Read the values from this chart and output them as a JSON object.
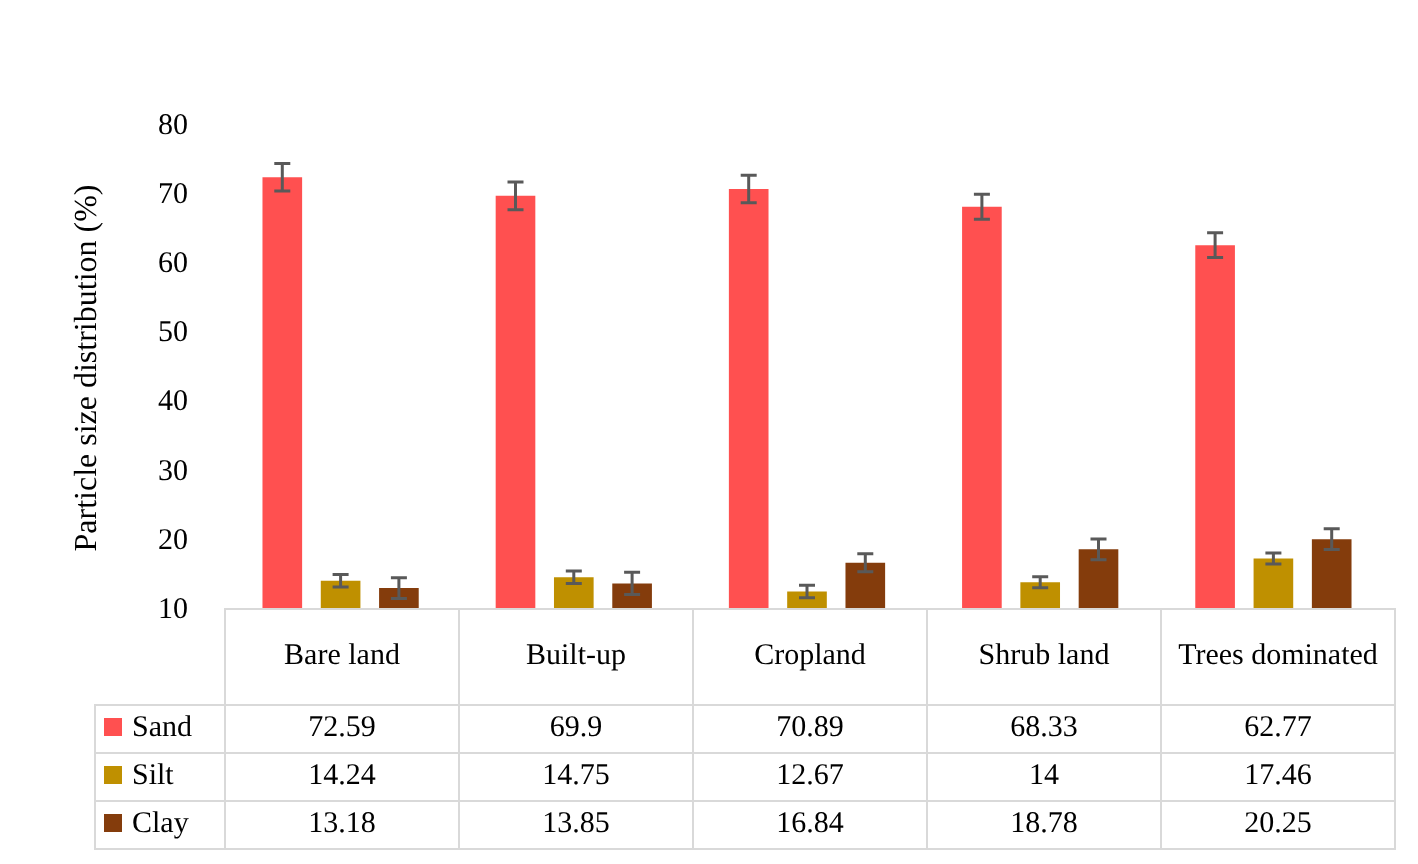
{
  "chart_data": {
    "type": "bar",
    "ylabel": "Particle size distribution (%)",
    "categories": [
      "Bare land",
      "Built-up",
      "Cropland",
      "Shrub land",
      "Trees dominated"
    ],
    "series": [
      {
        "name": "Sand",
        "color": "#ff5050",
        "values": [
          72.59,
          69.9,
          70.89,
          68.33,
          62.77
        ],
        "errors": [
          2,
          2,
          2,
          1.8,
          1.8
        ]
      },
      {
        "name": "Silt",
        "color": "#bf9000",
        "values": [
          14.24,
          14.75,
          12.67,
          14,
          17.46
        ],
        "errors": [
          0.9,
          0.9,
          0.9,
          0.8,
          0.8
        ]
      },
      {
        "name": "Clay",
        "color": "#843c0c",
        "values": [
          13.18,
          13.85,
          16.84,
          18.78,
          20.25
        ],
        "errors": [
          1.5,
          1.6,
          1.3,
          1.5,
          1.5
        ]
      }
    ],
    "ylim": [
      10,
      80
    ],
    "yticks": [
      10,
      20,
      30,
      40,
      50,
      60,
      70,
      80
    ],
    "grid": false,
    "legend": "bottom",
    "data_labels": true
  }
}
